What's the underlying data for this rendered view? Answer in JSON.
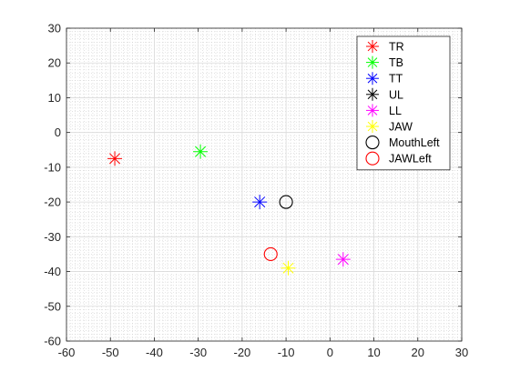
{
  "chart_data": {
    "type": "scatter",
    "title": "",
    "xlabel": "",
    "ylabel": "",
    "xlim": [
      -60,
      30
    ],
    "ylim": [
      -60,
      30
    ],
    "x_ticks": [
      -60,
      -50,
      -40,
      -30,
      -20,
      -10,
      0,
      10,
      20,
      30
    ],
    "y_ticks": [
      -60,
      -50,
      -40,
      -30,
      -20,
      -10,
      0,
      10,
      20,
      30
    ],
    "grid": true,
    "minor_grid": true,
    "legend_position": "top-right",
    "series": [
      {
        "name": "TR",
        "marker": "asterisk",
        "color": "#ff0000",
        "points": [
          [
            -49,
            -7.5
          ]
        ]
      },
      {
        "name": "TB",
        "marker": "asterisk",
        "color": "#00ff00",
        "points": [
          [
            -29.5,
            -5.5
          ]
        ]
      },
      {
        "name": "TT",
        "marker": "asterisk",
        "color": "#0000ff",
        "points": [
          [
            -16,
            -20
          ]
        ]
      },
      {
        "name": "UL",
        "marker": "asterisk",
        "color": "#000000",
        "points": []
      },
      {
        "name": "LL",
        "marker": "asterisk",
        "color": "#ff00ff",
        "points": [
          [
            3,
            -36.5
          ]
        ]
      },
      {
        "name": "JAW",
        "marker": "asterisk",
        "color": "#ffff00",
        "points": [
          [
            -9.5,
            -39
          ]
        ]
      },
      {
        "name": "MouthLeft",
        "marker": "circle",
        "color": "#000000",
        "points": [
          [
            -10,
            -20
          ]
        ]
      },
      {
        "name": "JAWLeft",
        "marker": "circle",
        "color": "#ff0000",
        "points": [
          [
            -13.5,
            -35
          ]
        ]
      }
    ]
  }
}
